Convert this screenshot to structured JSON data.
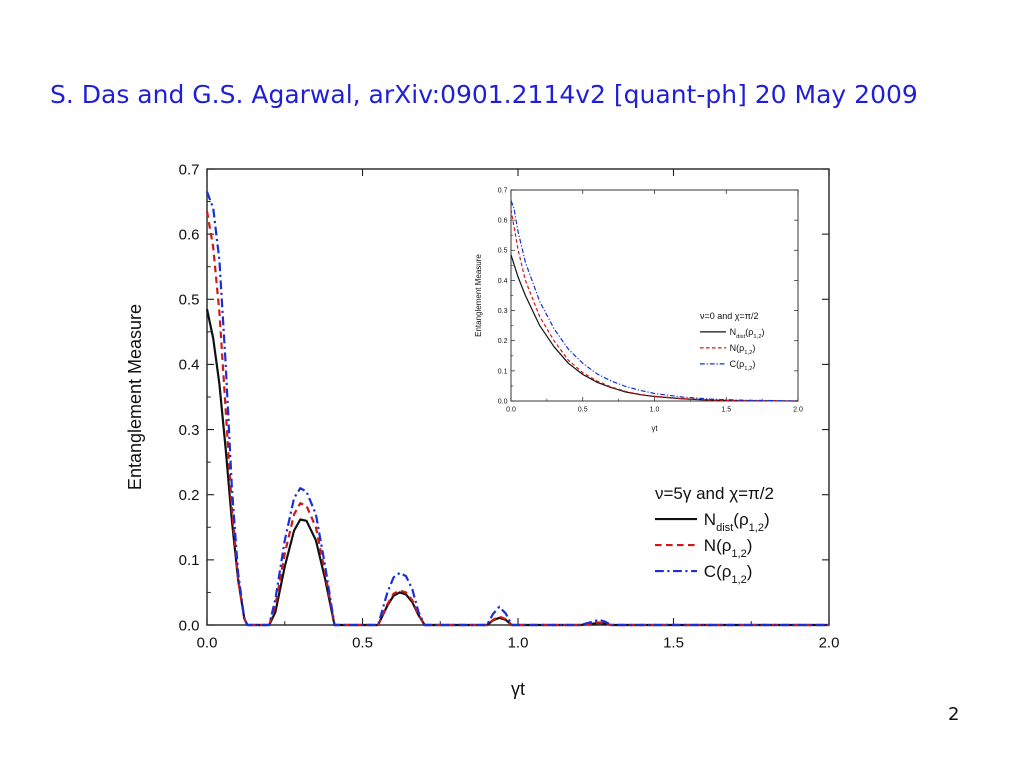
{
  "slide": {
    "title": "S. Das and G.S. Agarwal, arXiv:0901.2114v2 [quant-ph] 20 May 2009",
    "page_number": "2"
  },
  "chart_data": [
    {
      "type": "line",
      "xlabel": "γt",
      "ylabel": "Entanglement Measure",
      "xlim": [
        0,
        2.0
      ],
      "ylim": [
        0,
        0.7
      ],
      "xticks": [
        "0.0",
        "0.5",
        "1.0",
        "1.5",
        "2.0"
      ],
      "yticks": [
        "0.0",
        "0.1",
        "0.2",
        "0.3",
        "0.4",
        "0.5",
        "0.6",
        "0.7"
      ],
      "legend": {
        "heading": "ν=5γ  and χ=π/2",
        "position": "right-middle",
        "entries": [
          "N_dist(ρ_1,2)",
          "N(ρ_1,2)",
          "C(ρ_1,2)"
        ]
      },
      "series": [
        {
          "name": "N_dist(ρ_1,2)",
          "color": "#111111",
          "style": "solid",
          "x": [
            0,
            0.02,
            0.04,
            0.06,
            0.08,
            0.1,
            0.12,
            0.13,
            0.2,
            0.22,
            0.25,
            0.28,
            0.3,
            0.32,
            0.35,
            0.38,
            0.41,
            0.55,
            0.58,
            0.6,
            0.62,
            0.64,
            0.66,
            0.68,
            0.7,
            0.9,
            0.92,
            0.94,
            0.96,
            0.98,
            1.2,
            1.24,
            1.26,
            1.28,
            1.3,
            2.0
          ],
          "y": [
            0.485,
            0.44,
            0.37,
            0.27,
            0.16,
            0.07,
            0.01,
            0.0,
            0.0,
            0.02,
            0.09,
            0.145,
            0.162,
            0.16,
            0.13,
            0.07,
            0.0,
            0.0,
            0.03,
            0.045,
            0.05,
            0.047,
            0.035,
            0.015,
            0.0,
            0.0,
            0.007,
            0.011,
            0.008,
            0.0,
            0.0,
            0.002,
            0.003,
            0.002,
            0.0,
            0.0
          ]
        },
        {
          "name": "N(ρ_1,2)",
          "color": "#d01818",
          "style": "dashed",
          "x": [
            0,
            0.02,
            0.04,
            0.06,
            0.08,
            0.1,
            0.12,
            0.13,
            0.2,
            0.22,
            0.25,
            0.28,
            0.3,
            0.32,
            0.35,
            0.38,
            0.41,
            0.55,
            0.58,
            0.6,
            0.62,
            0.64,
            0.66,
            0.68,
            0.7,
            0.9,
            0.92,
            0.94,
            0.96,
            0.98,
            1.2,
            1.24,
            1.26,
            1.28,
            1.3,
            2.0
          ],
          "y": [
            0.635,
            0.58,
            0.48,
            0.33,
            0.18,
            0.07,
            0.01,
            0.0,
            0.0,
            0.03,
            0.11,
            0.17,
            0.187,
            0.183,
            0.15,
            0.08,
            0.0,
            0.0,
            0.032,
            0.048,
            0.053,
            0.05,
            0.038,
            0.016,
            0.0,
            0.0,
            0.008,
            0.013,
            0.009,
            0.0,
            0.0,
            0.002,
            0.004,
            0.002,
            0.0,
            0.0
          ]
        },
        {
          "name": "C(ρ_1,2)",
          "color": "#1a2fd6",
          "style": "dashdot",
          "x": [
            0,
            0.02,
            0.04,
            0.06,
            0.08,
            0.1,
            0.12,
            0.13,
            0.2,
            0.22,
            0.25,
            0.28,
            0.3,
            0.32,
            0.35,
            0.38,
            0.41,
            0.55,
            0.58,
            0.6,
            0.62,
            0.64,
            0.66,
            0.68,
            0.7,
            0.9,
            0.92,
            0.94,
            0.96,
            0.98,
            1.2,
            1.24,
            1.26,
            1.28,
            1.3,
            2.0
          ],
          "y": [
            0.665,
            0.64,
            0.56,
            0.4,
            0.21,
            0.08,
            0.01,
            0.0,
            0.0,
            0.04,
            0.13,
            0.195,
            0.21,
            0.205,
            0.17,
            0.09,
            0.0,
            0.0,
            0.05,
            0.073,
            0.08,
            0.075,
            0.055,
            0.02,
            0.0,
            0.0,
            0.017,
            0.028,
            0.018,
            0.0,
            0.0,
            0.005,
            0.008,
            0.005,
            0.0,
            0.0
          ]
        }
      ]
    },
    {
      "type": "line",
      "xlabel": "γt",
      "ylabel": "Entanglement Measure",
      "xlim": [
        0,
        2.0
      ],
      "ylim": [
        0,
        0.7
      ],
      "xticks": [
        "0.0",
        "0.5",
        "1.0",
        "1.5",
        "2.0"
      ],
      "yticks": [
        "0.0",
        "0.1",
        "0.2",
        "0.3",
        "0.4",
        "0.5",
        "0.6",
        "0.7"
      ],
      "legend": {
        "heading": "ν=0  and χ=π/2",
        "position": "right-middle",
        "entries": [
          "N_dist(ρ_1,2)",
          "N(ρ_1,2)",
          "C(ρ_1,2)"
        ]
      },
      "series": [
        {
          "name": "N_dist(ρ_1,2)",
          "color": "#111111",
          "style": "solid",
          "x": [
            0,
            0.05,
            0.1,
            0.2,
            0.3,
            0.4,
            0.5,
            0.6,
            0.7,
            0.8,
            0.9,
            1.0,
            1.2,
            1.4,
            1.6,
            2.0
          ],
          "y": [
            0.485,
            0.41,
            0.35,
            0.25,
            0.18,
            0.125,
            0.088,
            0.062,
            0.044,
            0.03,
            0.021,
            0.015,
            0.007,
            0.003,
            0.001,
            0.0
          ]
        },
        {
          "name": "N(ρ_1,2)",
          "color": "#d01818",
          "style": "dashed",
          "x": [
            0,
            0.02,
            0.05,
            0.1,
            0.2,
            0.3,
            0.4,
            0.5,
            0.6,
            0.7,
            0.8,
            0.9,
            1.0,
            1.2,
            1.4,
            1.6,
            2.0
          ],
          "y": [
            0.635,
            0.58,
            0.5,
            0.4,
            0.28,
            0.2,
            0.135,
            0.094,
            0.066,
            0.046,
            0.032,
            0.022,
            0.016,
            0.008,
            0.003,
            0.001,
            0.0
          ]
        },
        {
          "name": "C(ρ_1,2)",
          "color": "#1a2fd6",
          "style": "dashdot",
          "x": [
            0,
            0.02,
            0.05,
            0.1,
            0.2,
            0.3,
            0.4,
            0.5,
            0.6,
            0.7,
            0.8,
            0.9,
            1.0,
            1.2,
            1.4,
            1.6,
            2.0
          ],
          "y": [
            0.665,
            0.64,
            0.56,
            0.46,
            0.33,
            0.24,
            0.172,
            0.125,
            0.09,
            0.066,
            0.048,
            0.035,
            0.025,
            0.013,
            0.006,
            0.003,
            0.0
          ]
        }
      ]
    }
  ]
}
